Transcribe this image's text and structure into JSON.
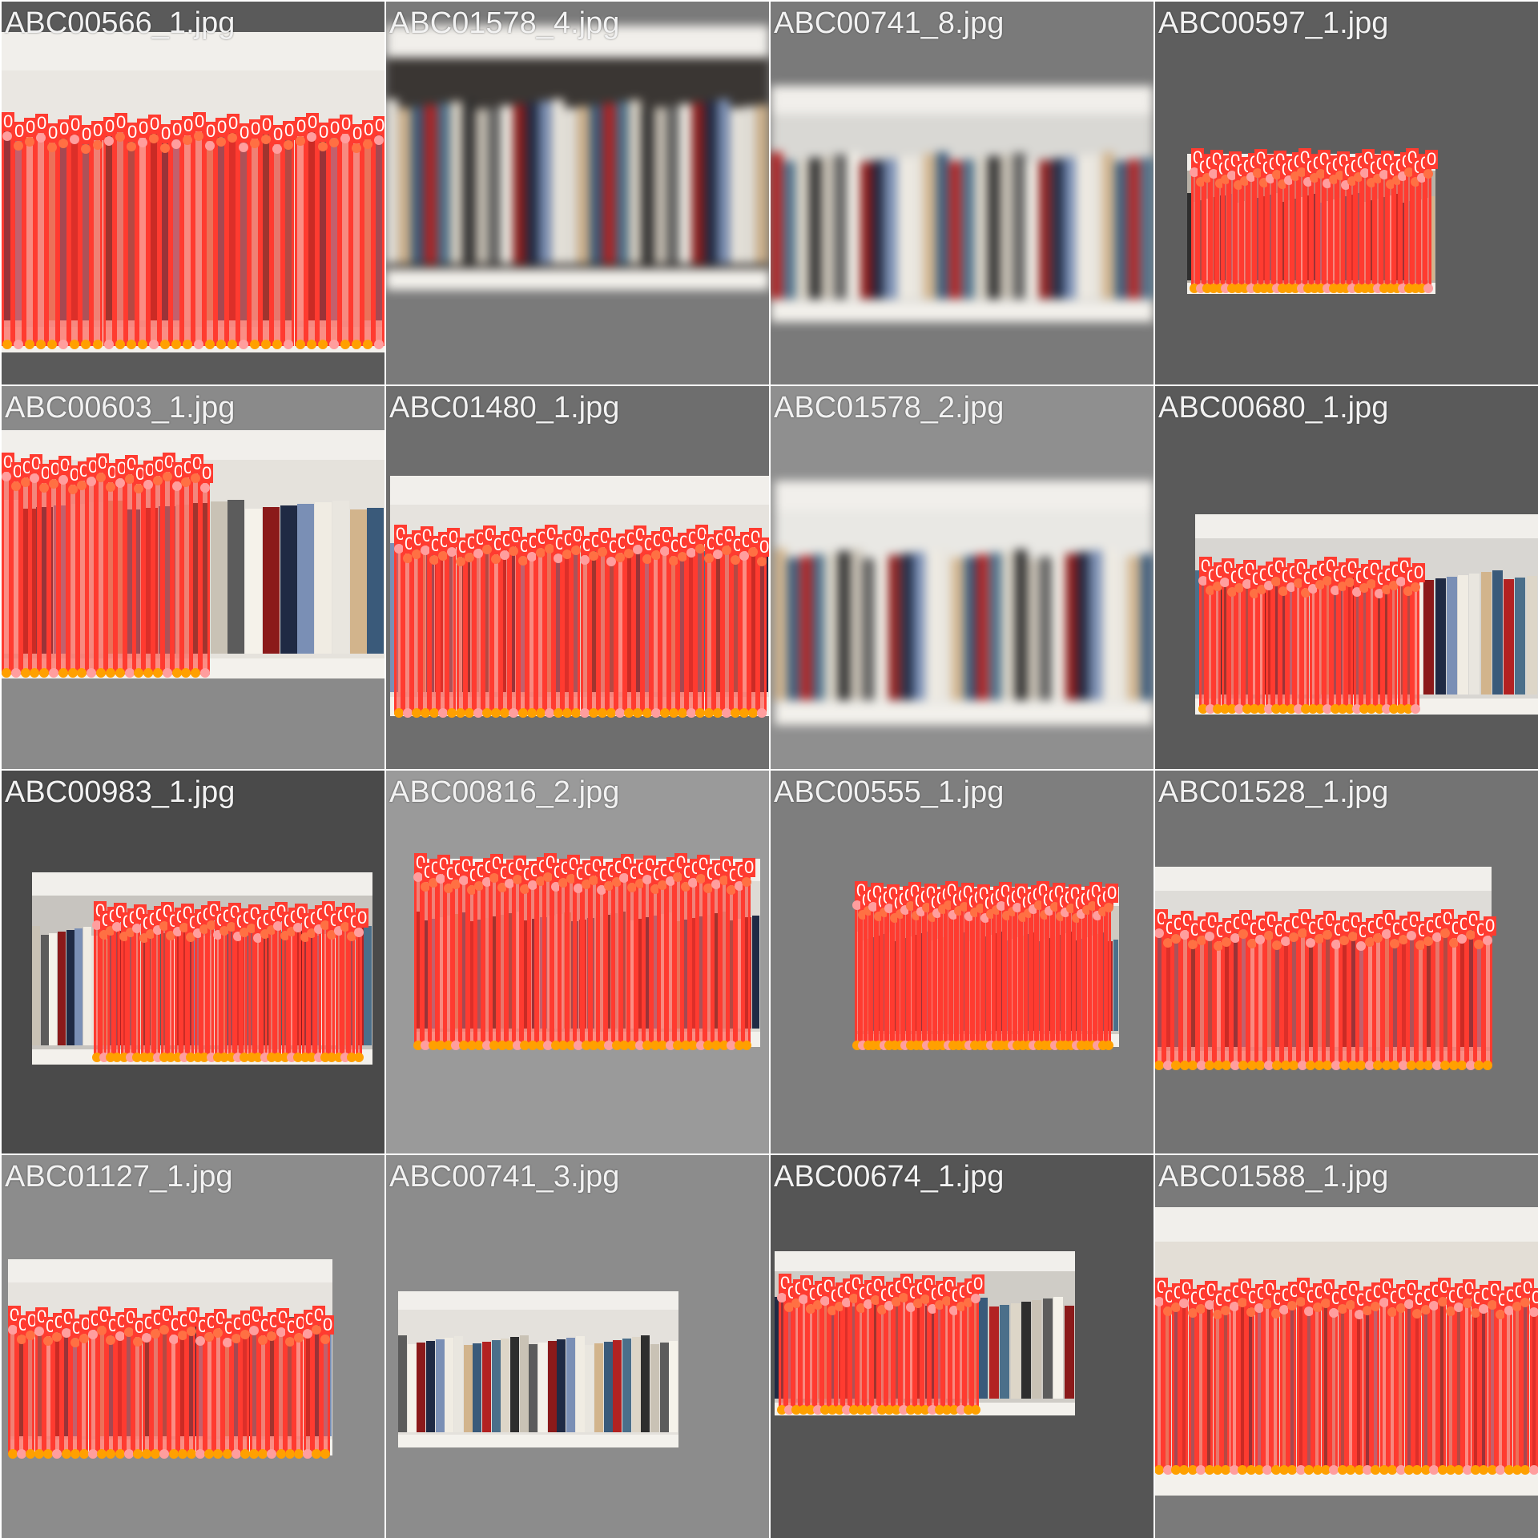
{
  "tiles": [
    {
      "filename": "ABC00566_1.jpg",
      "bg": "#5a5a5a",
      "annotated": true,
      "spines": 34,
      "blurred": false,
      "tag": "0"
    },
    {
      "filename": "ABC01578_4.jpg",
      "bg": "#7a7a7a",
      "annotated": false,
      "spines": 0,
      "blurred": true,
      "tag": ""
    },
    {
      "filename": "ABC00741_8.jpg",
      "bg": "#7a7a7a",
      "annotated": false,
      "spines": 0,
      "blurred": true,
      "tag": ""
    },
    {
      "filename": "ABC00597_1.jpg",
      "bg": "#5e5e5e",
      "annotated": true,
      "spines": 38,
      "blurred": false,
      "tag": "0"
    },
    {
      "filename": "ABC00603_1.jpg",
      "bg": "#8a8a8a",
      "annotated": true,
      "spines": 22,
      "blurred": false,
      "tag": "0"
    },
    {
      "filename": "ABC01480_1.jpg",
      "bg": "#6e6e6e",
      "annotated": true,
      "spines": 42,
      "blurred": false,
      "tag": "0"
    },
    {
      "filename": "ABC01578_2.jpg",
      "bg": "#8f8f8f",
      "annotated": false,
      "spines": 0,
      "blurred": true,
      "tag": ""
    },
    {
      "filename": "ABC00680_1.jpg",
      "bg": "#5a5a5a",
      "annotated": true,
      "spines": 30,
      "blurred": false,
      "tag": "0"
    },
    {
      "filename": "ABC00983_1.jpg",
      "bg": "#4a4a4a",
      "annotated": true,
      "spines": 40,
      "blurred": false,
      "tag": "0"
    },
    {
      "filename": "ABC00816_2.jpg",
      "bg": "#9a9a9a",
      "annotated": true,
      "spines": 44,
      "blurred": false,
      "tag": "0"
    },
    {
      "filename": "ABC00555_1.jpg",
      "bg": "#7e7e7e",
      "annotated": true,
      "spines": 48,
      "blurred": false,
      "tag": "0"
    },
    {
      "filename": "ABC01528_1.jpg",
      "bg": "#737373",
      "annotated": true,
      "spines": 40,
      "blurred": false,
      "tag": "0"
    },
    {
      "filename": "ABC01127_1.jpg",
      "bg": "#8c8c8c",
      "annotated": true,
      "spines": 36,
      "blurred": false,
      "tag": "0"
    },
    {
      "filename": "ABC00741_3.jpg",
      "bg": "#8c8c8c",
      "annotated": false,
      "spines": 0,
      "blurred": false,
      "tag": ""
    },
    {
      "filename": "ABC00674_1.jpg",
      "bg": "#555555",
      "annotated": true,
      "spines": 28,
      "blurred": false,
      "tag": "0"
    },
    {
      "filename": "ABC01588_1.jpg",
      "bg": "#7a7a7a",
      "annotated": true,
      "spines": 46,
      "blurred": false,
      "tag": "0"
    }
  ],
  "colors": {
    "box": "#ff3b30",
    "keypoint_top": "#ff7043",
    "keypoint_bottom": "#ffa000",
    "keypoint_alt": "#ff9e9e"
  }
}
